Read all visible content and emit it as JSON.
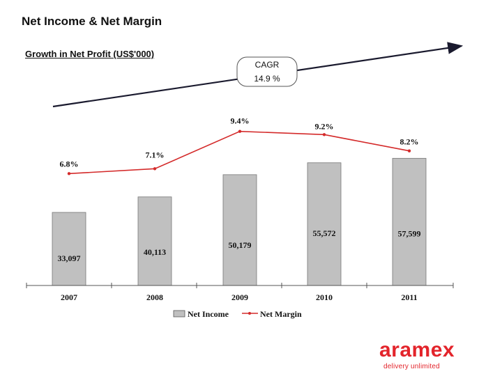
{
  "slide": {
    "title": "Net Income & Net Margin",
    "subtitle": "Growth in Net Profit (US$'000)"
  },
  "cagr": {
    "label": "CAGR",
    "value": "14.9 %"
  },
  "chart_data": {
    "type": "bar",
    "categories": [
      "2007",
      "2008",
      "2009",
      "2010",
      "2011"
    ],
    "series": [
      {
        "name": "Net Income",
        "type": "bar",
        "values": [
          33097,
          40113,
          50179,
          55572,
          57599
        ],
        "labels": [
          "33,097",
          "40,113",
          "50,179",
          "55,572",
          "57,599"
        ],
        "color": "#c0c0c0"
      },
      {
        "name": "Net Margin",
        "type": "line",
        "values": [
          6.8,
          7.1,
          9.4,
          9.2,
          8.2
        ],
        "labels": [
          "6.8%",
          "7.1%",
          "9.4%",
          "9.2%",
          "8.2%"
        ],
        "color": "#d42a2a"
      }
    ],
    "bar_ylim": [
      0,
      70000
    ],
    "line_ylim": [
      0,
      13.5
    ],
    "legend": [
      "Net Income",
      "Net Margin"
    ],
    "legend_position": "bottom"
  },
  "brand": {
    "name": "aramex",
    "tagline": "delivery unlimited",
    "color": "#e3242b"
  }
}
